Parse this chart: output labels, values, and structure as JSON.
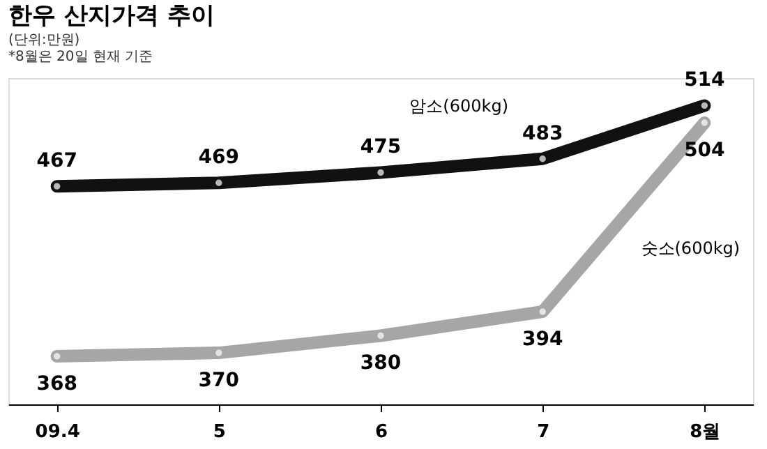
{
  "chart_data": {
    "type": "line",
    "title": "한우 산지가격 추이",
    "annotations": [
      "(단위:만원)",
      "*8월은 20일 현재 기준"
    ],
    "categories": [
      "09.4",
      "5",
      "6",
      "7",
      "8월"
    ],
    "series": [
      {
        "name": "암소(600kg)",
        "color": "#111111",
        "values": [
          467,
          469,
          475,
          483,
          514
        ]
      },
      {
        "name": "숫소(600kg)",
        "color": "#a6a6a6",
        "values": [
          368,
          370,
          380,
          394,
          504
        ]
      }
    ],
    "ylim": [
      340,
      530
    ],
    "data_labels": true,
    "marker": "circle",
    "legend": false,
    "grid": false
  }
}
